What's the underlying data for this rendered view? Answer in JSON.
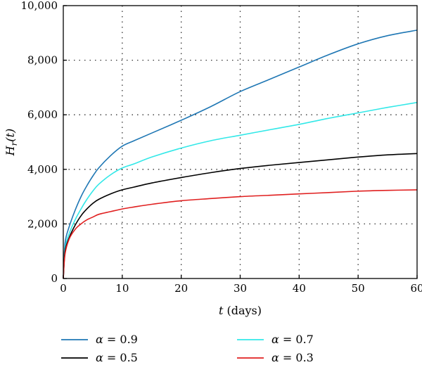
{
  "chart_data": {
    "type": "line",
    "xlabel": {
      "var": "t",
      "rest": " (days)"
    },
    "ylabel": {
      "main": "H",
      "sub": "r",
      "arg": "(t)"
    },
    "xlim": [
      0,
      60
    ],
    "ylim": [
      0,
      10000
    ],
    "xticks": [
      0,
      10,
      20,
      30,
      40,
      50,
      60
    ],
    "yticks": [
      0,
      2000,
      4000,
      6000,
      8000,
      10000
    ],
    "xtick_labels": [
      "0",
      "10",
      "20",
      "30",
      "40",
      "50",
      "60"
    ],
    "ytick_labels": [
      "0",
      "2,000",
      "4,000",
      "6,000",
      "8,000",
      "10,000"
    ],
    "grid": true,
    "legend": {
      "placement": "below"
    },
    "series": [
      {
        "name": "α = 0.9",
        "label_greek": "α",
        "label_value": " = 0.9",
        "color": "#1f77b4",
        "x": [
          0,
          0.3,
          1,
          2,
          3,
          4,
          5,
          6,
          8,
          10,
          12,
          15,
          20,
          25,
          30,
          35,
          40,
          45,
          50,
          55,
          60
        ],
        "y": [
          0,
          1300,
          1900,
          2500,
          3000,
          3400,
          3750,
          4050,
          4500,
          4850,
          5050,
          5330,
          5800,
          6300,
          6850,
          7300,
          7750,
          8200,
          8600,
          8900,
          9100
        ]
      },
      {
        "name": "α = 0.7",
        "label_greek": "α",
        "label_value": " = 0.7",
        "color": "#33e8e8",
        "x": [
          0,
          0.3,
          1,
          2,
          3,
          4,
          5,
          6,
          8,
          10,
          12,
          15,
          20,
          25,
          30,
          35,
          40,
          45,
          50,
          55,
          60
        ],
        "y": [
          0,
          1100,
          1650,
          2150,
          2550,
          2900,
          3200,
          3450,
          3800,
          4050,
          4200,
          4450,
          4780,
          5050,
          5250,
          5450,
          5650,
          5870,
          6070,
          6270,
          6450
        ]
      },
      {
        "name": "α = 0.5",
        "label_greek": "α",
        "label_value": " = 0.5",
        "color": "#000000",
        "x": [
          0,
          0.3,
          1,
          2,
          3,
          4,
          5,
          6,
          8,
          10,
          12,
          15,
          20,
          25,
          30,
          35,
          40,
          45,
          50,
          55,
          60
        ],
        "y": [
          0,
          1000,
          1500,
          1950,
          2300,
          2550,
          2750,
          2900,
          3100,
          3250,
          3350,
          3500,
          3700,
          3880,
          4030,
          4150,
          4250,
          4350,
          4450,
          4530,
          4580
        ]
      },
      {
        "name": "α = 0.3",
        "label_greek": "α",
        "label_value": " = 0.3",
        "color": "#e02020",
        "x": [
          0,
          0.3,
          1,
          2,
          3,
          4,
          5,
          6,
          8,
          10,
          12,
          15,
          20,
          25,
          30,
          35,
          40,
          45,
          50,
          55,
          60
        ],
        "y": [
          0,
          900,
          1450,
          1800,
          2000,
          2150,
          2250,
          2350,
          2450,
          2550,
          2620,
          2720,
          2850,
          2930,
          3000,
          3050,
          3100,
          3150,
          3200,
          3230,
          3250
        ]
      }
    ]
  }
}
